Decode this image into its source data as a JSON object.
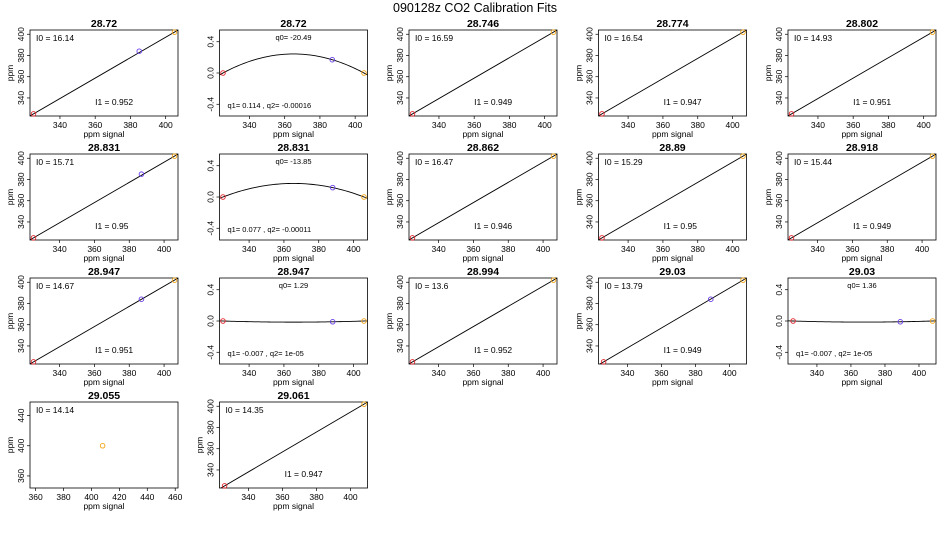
{
  "title": "090128z   CO2 Calibration Fits",
  "colors": {
    "frame": "#000000",
    "line": "#000000",
    "point_low": "#e3242b",
    "point_mid": "#6a3de8",
    "point_high": "#f2a413"
  },
  "chart_data": [
    {
      "type": "scatter",
      "fit": "linear",
      "title": "28.72",
      "xlabel": "ppm signal",
      "ylabel": "ppm",
      "xlim": [
        323,
        407
      ],
      "ylim": [
        323,
        404
      ],
      "xticks": [
        340,
        360,
        380,
        400
      ],
      "yticks": [
        340,
        360,
        380,
        400
      ],
      "points": [
        {
          "x": 325,
          "y": 325,
          "color": "point_low"
        },
        {
          "x": 385,
          "y": 384,
          "color": "point_mid"
        },
        {
          "x": 405,
          "y": 402,
          "color": "point_high"
        }
      ],
      "labels": {
        "top": "I0 =  16.14",
        "bottom": "I1 =  0.952"
      }
    },
    {
      "type": "scatter",
      "fit": "quadratic",
      "title": "28.72",
      "xlabel": "ppm signal",
      "ylabel": "",
      "xlim": [
        323,
        407
      ],
      "ylim": [
        -0.55,
        0.55
      ],
      "xticks": [
        340,
        360,
        380,
        400
      ],
      "yticks": [
        -0.4,
        0.0,
        0.4
      ],
      "points": [
        {
          "x": 325,
          "y": 0.0,
          "color": "point_low"
        },
        {
          "x": 387,
          "y": 0.17,
          "color": "point_mid"
        },
        {
          "x": 405,
          "y": 0.0,
          "color": "point_high"
        }
      ],
      "labels": {
        "top": "q0= -20.49",
        "bottom": "q1= 0.114 , q2= -0.00016"
      }
    },
    {
      "type": "scatter",
      "fit": "linear",
      "title": "28.746",
      "xlabel": "ppm signal",
      "ylabel": "ppm",
      "xlim": [
        323,
        407
      ],
      "ylim": [
        323,
        404
      ],
      "xticks": [
        340,
        360,
        380,
        400
      ],
      "yticks": [
        340,
        360,
        380,
        400
      ],
      "points": [
        {
          "x": 325,
          "y": 325,
          "color": "point_low"
        },
        {
          "x": 405,
          "y": 402,
          "color": "point_high"
        }
      ],
      "labels": {
        "top": "I0 =  16.59",
        "bottom": "I1 =  0.949"
      }
    },
    {
      "type": "scatter",
      "fit": "linear",
      "title": "28.774",
      "xlabel": "ppm signal",
      "ylabel": "ppm",
      "xlim": [
        323,
        408
      ],
      "ylim": [
        323,
        404
      ],
      "xticks": [
        340,
        360,
        380,
        400
      ],
      "yticks": [
        340,
        360,
        380,
        400
      ],
      "points": [
        {
          "x": 325,
          "y": 325,
          "color": "point_low"
        },
        {
          "x": 406,
          "y": 402,
          "color": "point_high"
        }
      ],
      "labels": {
        "top": "I0 =  16.54",
        "bottom": "I1 =  0.947"
      }
    },
    {
      "type": "scatter",
      "fit": "linear",
      "title": "28.802",
      "xlabel": "ppm signal",
      "ylabel": "ppm",
      "xlim": [
        323,
        407
      ],
      "ylim": [
        323,
        404
      ],
      "xticks": [
        340,
        360,
        380,
        400
      ],
      "yticks": [
        340,
        360,
        380,
        400
      ],
      "points": [
        {
          "x": 325,
          "y": 325,
          "color": "point_low"
        },
        {
          "x": 405,
          "y": 402,
          "color": "point_high"
        }
      ],
      "labels": {
        "top": "I0 =  14.93",
        "bottom": "I1 =  0.951"
      }
    },
    {
      "type": "scatter",
      "fit": "linear",
      "title": "28.831",
      "xlabel": "ppm signal",
      "ylabel": "ppm",
      "xlim": [
        323,
        408
      ],
      "ylim": [
        323,
        404
      ],
      "xticks": [
        340,
        360,
        380,
        400
      ],
      "yticks": [
        340,
        360,
        380,
        400
      ],
      "points": [
        {
          "x": 325,
          "y": 325,
          "color": "point_low"
        },
        {
          "x": 387,
          "y": 385,
          "color": "point_mid"
        },
        {
          "x": 406,
          "y": 402,
          "color": "point_high"
        }
      ],
      "labels": {
        "top": "I0 =  15.71",
        "bottom": "I1 =  0.95"
      }
    },
    {
      "type": "scatter",
      "fit": "quadratic",
      "title": "28.831",
      "xlabel": "ppm signal",
      "ylabel": "",
      "xlim": [
        323,
        408
      ],
      "ylim": [
        -0.55,
        0.55
      ],
      "xticks": [
        340,
        360,
        380,
        400
      ],
      "yticks": [
        -0.4,
        0.0,
        0.4
      ],
      "points": [
        {
          "x": 325,
          "y": 0.0,
          "color": "point_low"
        },
        {
          "x": 388,
          "y": 0.12,
          "color": "point_mid"
        },
        {
          "x": 406,
          "y": 0.0,
          "color": "point_high"
        }
      ],
      "labels": {
        "top": "q0= -13.85",
        "bottom": "q1= 0.077 , q2= -0.00011"
      }
    },
    {
      "type": "scatter",
      "fit": "linear",
      "title": "28.862",
      "xlabel": "ppm signal",
      "ylabel": "ppm",
      "xlim": [
        323,
        408
      ],
      "ylim": [
        323,
        404
      ],
      "xticks": [
        340,
        360,
        380,
        400
      ],
      "yticks": [
        340,
        360,
        380,
        400
      ],
      "points": [
        {
          "x": 325,
          "y": 325,
          "color": "point_low"
        },
        {
          "x": 406,
          "y": 402,
          "color": "point_high"
        }
      ],
      "labels": {
        "top": "I0 =  16.47",
        "bottom": "I1 =  0.946"
      }
    },
    {
      "type": "scatter",
      "fit": "linear",
      "title": "28.89",
      "xlabel": "ppm signal",
      "ylabel": "ppm",
      "xlim": [
        323,
        408
      ],
      "ylim": [
        323,
        404
      ],
      "xticks": [
        340,
        360,
        380,
        400
      ],
      "yticks": [
        340,
        360,
        380,
        400
      ],
      "points": [
        {
          "x": 325,
          "y": 325,
          "color": "point_low"
        },
        {
          "x": 406,
          "y": 402,
          "color": "point_high"
        }
      ],
      "labels": {
        "top": "I0 =  15.29",
        "bottom": "I1 =  0.95"
      }
    },
    {
      "type": "scatter",
      "fit": "linear",
      "title": "28.918",
      "xlabel": "ppm signal",
      "ylabel": "ppm",
      "xlim": [
        323,
        408
      ],
      "ylim": [
        323,
        404
      ],
      "xticks": [
        340,
        360,
        380,
        400
      ],
      "yticks": [
        340,
        360,
        380,
        400
      ],
      "points": [
        {
          "x": 325,
          "y": 325,
          "color": "point_low"
        },
        {
          "x": 406,
          "y": 402,
          "color": "point_high"
        }
      ],
      "labels": {
        "top": "I0 =  15.44",
        "bottom": "I1 =  0.949"
      }
    },
    {
      "type": "scatter",
      "fit": "linear",
      "title": "28.947",
      "xlabel": "ppm signal",
      "ylabel": "ppm",
      "xlim": [
        323,
        408
      ],
      "ylim": [
        323,
        404
      ],
      "xticks": [
        340,
        360,
        380,
        400
      ],
      "yticks": [
        340,
        360,
        380,
        400
      ],
      "points": [
        {
          "x": 325,
          "y": 325,
          "color": "point_low"
        },
        {
          "x": 387,
          "y": 384,
          "color": "point_mid"
        },
        {
          "x": 406,
          "y": 402,
          "color": "point_high"
        }
      ],
      "labels": {
        "top": "I0 =  14.67",
        "bottom": "I1 =  0.951"
      }
    },
    {
      "type": "scatter",
      "fit": "quadratic",
      "title": "28.947",
      "xlabel": "ppm signal",
      "ylabel": "",
      "xlim": [
        323,
        408
      ],
      "ylim": [
        -0.55,
        0.55
      ],
      "xticks": [
        340,
        360,
        380,
        400
      ],
      "yticks": [
        -0.4,
        0.0,
        0.4
      ],
      "points": [
        {
          "x": 325,
          "y": 0.0,
          "color": "point_low"
        },
        {
          "x": 388,
          "y": -0.01,
          "color": "point_mid"
        },
        {
          "x": 406,
          "y": 0.0,
          "color": "point_high"
        }
      ],
      "labels": {
        "top": "q0= 1.29",
        "bottom": "q1= -0.007 , q2= 1e-05"
      }
    },
    {
      "type": "scatter",
      "fit": "linear",
      "title": "28.994",
      "xlabel": "ppm signal",
      "ylabel": "ppm",
      "xlim": [
        323,
        408
      ],
      "ylim": [
        323,
        404
      ],
      "xticks": [
        340,
        360,
        380,
        400
      ],
      "yticks": [
        340,
        360,
        380,
        400
      ],
      "points": [
        {
          "x": 325,
          "y": 325,
          "color": "point_low"
        },
        {
          "x": 406,
          "y": 402,
          "color": "point_high"
        }
      ],
      "labels": {
        "top": "I0 =  13.6",
        "bottom": "I1 =  0.952"
      }
    },
    {
      "type": "scatter",
      "fit": "linear",
      "title": "29.03",
      "xlabel": "ppm signal",
      "ylabel": "ppm",
      "xlim": [
        323,
        410
      ],
      "ylim": [
        323,
        404
      ],
      "xticks": [
        340,
        360,
        380,
        400
      ],
      "yticks": [
        340,
        360,
        380,
        400
      ],
      "points": [
        {
          "x": 326,
          "y": 325,
          "color": "point_low"
        },
        {
          "x": 389,
          "y": 384,
          "color": "point_mid"
        },
        {
          "x": 408,
          "y": 402,
          "color": "point_high"
        }
      ],
      "labels": {
        "top": "I0 =  13.79",
        "bottom": "I1 =  0.949"
      }
    },
    {
      "type": "scatter",
      "fit": "quadratic",
      "title": "29.03",
      "xlabel": "ppm signal",
      "ylabel": "",
      "xlim": [
        323,
        410
      ],
      "ylim": [
        -0.55,
        0.55
      ],
      "xticks": [
        340,
        360,
        380,
        400
      ],
      "yticks": [
        -0.4,
        0.0,
        0.4
      ],
      "points": [
        {
          "x": 326,
          "y": 0.0,
          "color": "point_low"
        },
        {
          "x": 389,
          "y": -0.01,
          "color": "point_mid"
        },
        {
          "x": 408,
          "y": 0.0,
          "color": "point_high"
        }
      ],
      "labels": {
        "top": "q0= 1.36",
        "bottom": "q1= -0.007 , q2= 1e-05"
      }
    },
    {
      "type": "scatter",
      "fit": "none",
      "title": "29.055",
      "xlabel": "ppm signal",
      "ylabel": "ppm",
      "xlim": [
        356,
        462
      ],
      "ylim": [
        344,
        458
      ],
      "xticks": [
        360,
        380,
        400,
        420,
        440,
        460
      ],
      "yticks": [
        360,
        400,
        440
      ],
      "points": [
        {
          "x": 408,
          "y": 400,
          "color": "point_high"
        }
      ],
      "labels": {
        "top": "I0 =  14.14",
        "bottom": ""
      }
    },
    {
      "type": "scatter",
      "fit": "linear",
      "title": "29.061",
      "xlabel": "ppm signal",
      "ylabel": "ppm",
      "xlim": [
        323,
        410
      ],
      "ylim": [
        323,
        404
      ],
      "xticks": [
        340,
        360,
        380,
        400
      ],
      "yticks": [
        340,
        360,
        380,
        400
      ],
      "points": [
        {
          "x": 326,
          "y": 325,
          "color": "point_low"
        },
        {
          "x": 408,
          "y": 402,
          "color": "point_high"
        }
      ],
      "labels": {
        "top": "I0 =  14.35",
        "bottom": "I1 =  0.947"
      }
    }
  ]
}
